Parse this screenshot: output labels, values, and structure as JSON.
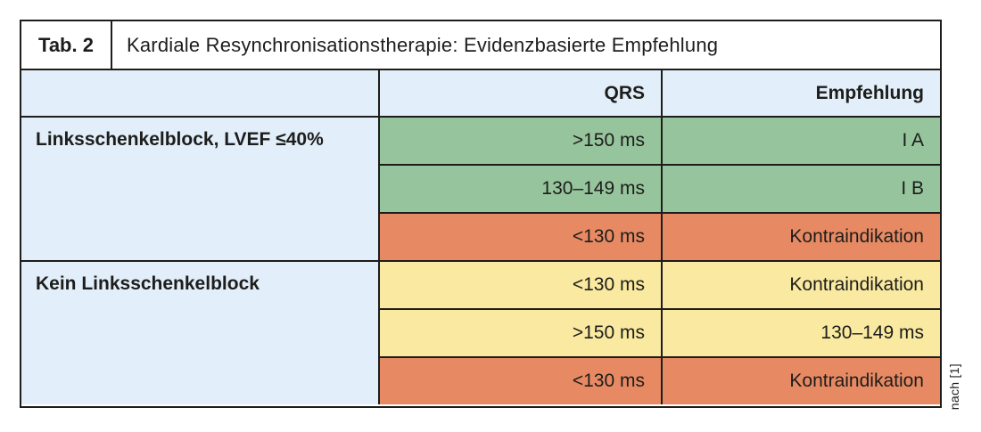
{
  "figure": {
    "tab_label": "Tab. 2",
    "title": "Kardiale Resynchronisationstherapie: Evidenzbasierte Empfehlung",
    "source_note": "nach [1]"
  },
  "table": {
    "header": {
      "label": "",
      "qrs": "QRS",
      "empfehlung": "Empfehlung"
    },
    "groups": [
      {
        "label": "Linksschenkelblock, LVEF ≤40%",
        "rows": [
          {
            "qrs": ">150 ms",
            "empfehlung": "I A",
            "status": "green"
          },
          {
            "qrs": "130–149 ms",
            "empfehlung": "I B",
            "status": "green"
          },
          {
            "qrs": "<130 ms",
            "empfehlung": "Kontraindikation",
            "status": "red"
          }
        ]
      },
      {
        "label": "Kein Linksschenkelblock",
        "rows": [
          {
            "qrs": "<130 ms",
            "empfehlung": "Kontraindikation",
            "status": "yellow"
          },
          {
            "qrs": ">150 ms",
            "empfehlung": "130–149 ms",
            "status": "yellow"
          },
          {
            "qrs": "<130 ms",
            "empfehlung": "Kontraindikation",
            "status": "red"
          }
        ]
      }
    ]
  },
  "colors": {
    "row_green": "#96c49c",
    "row_red": "#e78a63",
    "row_yellow": "#fae9a0",
    "header_blue": "#e2eef9",
    "border": "#1d1d1b",
    "text": "#1d1d1b"
  },
  "chart_data": {
    "type": "table",
    "title": "Kardiale Resynchronisationstherapie: Evidenzbasierte Empfehlung",
    "tab_label": "Tab. 2",
    "columns": [
      "",
      "QRS",
      "Empfehlung"
    ],
    "rows": [
      [
        "Linksschenkelblock, LVEF ≤40%",
        ">150 ms",
        "I A"
      ],
      [
        "Linksschenkelblock, LVEF ≤40%",
        "130–149 ms",
        "I B"
      ],
      [
        "Linksschenkelblock, LVEF ≤40%",
        "<130 ms",
        "Kontraindikation"
      ],
      [
        "Kein Linksschenkelblock",
        "<130 ms",
        "Kontraindikation"
      ],
      [
        "Kein Linksschenkelblock",
        ">150 ms",
        "130–149 ms"
      ],
      [
        "Kein Linksschenkelblock",
        "<130 ms",
        "Kontraindikation"
      ]
    ],
    "row_colors": [
      "green",
      "green",
      "red",
      "yellow",
      "yellow",
      "red"
    ],
    "source": "nach [1]",
    "layout_hints": {
      "label_column_spans_groups": true,
      "value_alignment": "right",
      "legend_position": "none",
      "grid": "all-borders"
    }
  }
}
